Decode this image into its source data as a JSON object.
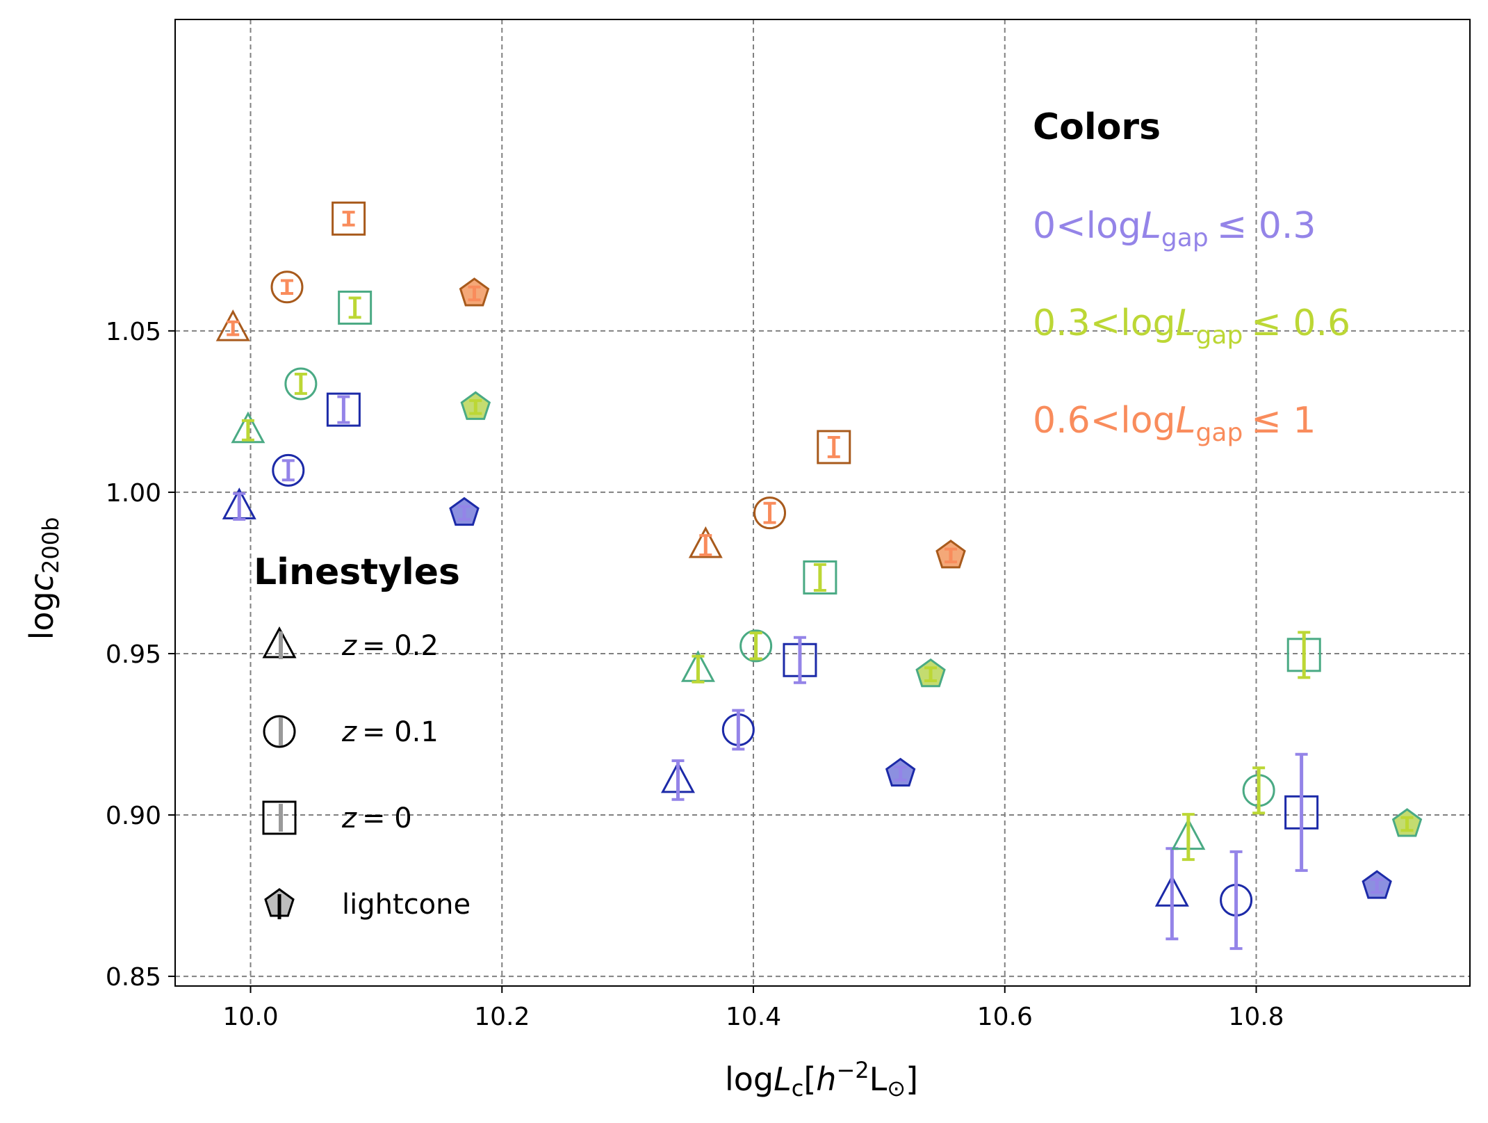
{
  "chart_data": {
    "type": "scatter",
    "xlabel": "logL_c[h^-2 L_sun]",
    "ylabel": "logc_200b",
    "xlim": [
      9.94,
      10.97
    ],
    "ylim": [
      0.847,
      1.1465
    ],
    "xticks": [
      "10.0",
      "10.2",
      "10.4",
      "10.6",
      "10.8"
    ],
    "xtick_values": [
      10.0,
      10.2,
      10.4,
      10.6,
      10.8
    ],
    "yticks": [
      "0.85",
      "0.90",
      "0.95",
      "1.00",
      "1.05"
    ],
    "ytick_values": [
      0.85,
      0.9,
      0.95,
      1.0,
      1.05
    ],
    "grid": true,
    "colors_legend": {
      "title": "Colors",
      "entries": [
        {
          "prefix": "0<log",
          "var": "L",
          "sub": "gap",
          "suffix": "≤ 0.3",
          "color": "#9484e8"
        },
        {
          "prefix": "0.3<log",
          "var": "L",
          "sub": "gap",
          "suffix": "≤ 0.6",
          "color": "#bcd735"
        },
        {
          "prefix": "0.6<log",
          "var": "L",
          "sub": "gap",
          "suffix": "≤ 1",
          "color": "#f98c5c"
        }
      ]
    },
    "linestyles_legend": {
      "title": "Linestyles",
      "entries": [
        {
          "marker": "triangle",
          "label_var": "z",
          "label_val": "= 0.2"
        },
        {
          "marker": "circle",
          "label_var": "z",
          "label_val": "= 0.1"
        },
        {
          "marker": "square",
          "label_var": "z",
          "label_val": "= 0"
        },
        {
          "marker": "pentagon",
          "label_text": "lightcone"
        }
      ]
    },
    "groups": [
      {
        "name": "0<logLgap≤0.3",
        "err_color": "#9484e8",
        "edge_color": "#1c2aa8",
        "fill_color": "#8c90e0"
      },
      {
        "name": "0.3<logLgap≤0.6",
        "err_color": "#bcd735",
        "edge_color": "#4aaa84",
        "fill_color": "#c4dc70"
      },
      {
        "name": "0.6<logLgap≤1",
        "err_color": "#f98c5c",
        "edge_color": "#a85a1c",
        "fill_color": "#f4a878"
      }
    ],
    "points": [
      {
        "group": 0,
        "marker": "triangle",
        "x": 9.991,
        "y": 0.9956,
        "err": 0.004
      },
      {
        "group": 0,
        "marker": "circle",
        "x": 10.03,
        "y": 1.0068,
        "err": 0.003
      },
      {
        "group": 0,
        "marker": "square",
        "x": 10.074,
        "y": 1.0256,
        "err": 0.004
      },
      {
        "group": 0,
        "marker": "pentagon",
        "x": 10.17,
        "y": 0.9936,
        "err": 0.002
      },
      {
        "group": 1,
        "marker": "triangle",
        "x": 9.998,
        "y": 1.0192,
        "err": 0.003
      },
      {
        "group": 1,
        "marker": "circle",
        "x": 10.04,
        "y": 1.0336,
        "err": 0.003
      },
      {
        "group": 1,
        "marker": "square",
        "x": 10.083,
        "y": 1.0572,
        "err": 0.003
      },
      {
        "group": 1,
        "marker": "pentagon",
        "x": 10.179,
        "y": 1.0264,
        "err": 0.002
      },
      {
        "group": 2,
        "marker": "triangle",
        "x": 9.986,
        "y": 1.0508,
        "err": 0.002
      },
      {
        "group": 2,
        "marker": "circle",
        "x": 10.029,
        "y": 1.0636,
        "err": 0.002
      },
      {
        "group": 2,
        "marker": "square",
        "x": 10.078,
        "y": 1.0848,
        "err": 0.002
      },
      {
        "group": 2,
        "marker": "pentagon",
        "x": 10.178,
        "y": 1.0616,
        "err": 0.002
      },
      {
        "group": 0,
        "marker": "triangle",
        "x": 10.34,
        "y": 0.9108,
        "err": 0.006
      },
      {
        "group": 0,
        "marker": "circle",
        "x": 10.388,
        "y": 0.9264,
        "err": 0.006
      },
      {
        "group": 0,
        "marker": "square",
        "x": 10.437,
        "y": 0.948,
        "err": 0.007
      },
      {
        "group": 0,
        "marker": "pentagon",
        "x": 10.517,
        "y": 0.9128,
        "err": 0.002
      },
      {
        "group": 1,
        "marker": "triangle",
        "x": 10.356,
        "y": 0.9452,
        "err": 0.004
      },
      {
        "group": 1,
        "marker": "circle",
        "x": 10.402,
        "y": 0.9524,
        "err": 0.004
      },
      {
        "group": 1,
        "marker": "square",
        "x": 10.453,
        "y": 0.9736,
        "err": 0.004
      },
      {
        "group": 1,
        "marker": "pentagon",
        "x": 10.541,
        "y": 0.9436,
        "err": 0.002
      },
      {
        "group": 2,
        "marker": "triangle",
        "x": 10.362,
        "y": 0.9836,
        "err": 0.003
      },
      {
        "group": 2,
        "marker": "circle",
        "x": 10.413,
        "y": 0.9936,
        "err": 0.003
      },
      {
        "group": 2,
        "marker": "square",
        "x": 10.464,
        "y": 1.014,
        "err": 0.003
      },
      {
        "group": 2,
        "marker": "pentagon",
        "x": 10.557,
        "y": 0.9804,
        "err": 0.002
      },
      {
        "group": 0,
        "marker": "triangle",
        "x": 10.733,
        "y": 0.8756,
        "err": 0.014
      },
      {
        "group": 0,
        "marker": "circle",
        "x": 10.784,
        "y": 0.8736,
        "err": 0.015
      },
      {
        "group": 0,
        "marker": "square",
        "x": 10.836,
        "y": 0.9008,
        "err": 0.018
      },
      {
        "group": 0,
        "marker": "pentagon",
        "x": 10.896,
        "y": 0.878,
        "err": 0.002
      },
      {
        "group": 1,
        "marker": "triangle",
        "x": 10.746,
        "y": 0.8932,
        "err": 0.007
      },
      {
        "group": 1,
        "marker": "circle",
        "x": 10.802,
        "y": 0.9076,
        "err": 0.007
      },
      {
        "group": 1,
        "marker": "square",
        "x": 10.838,
        "y": 0.9496,
        "err": 0.007
      },
      {
        "group": 1,
        "marker": "pentagon",
        "x": 10.92,
        "y": 0.8972,
        "err": 0.002
      }
    ]
  }
}
